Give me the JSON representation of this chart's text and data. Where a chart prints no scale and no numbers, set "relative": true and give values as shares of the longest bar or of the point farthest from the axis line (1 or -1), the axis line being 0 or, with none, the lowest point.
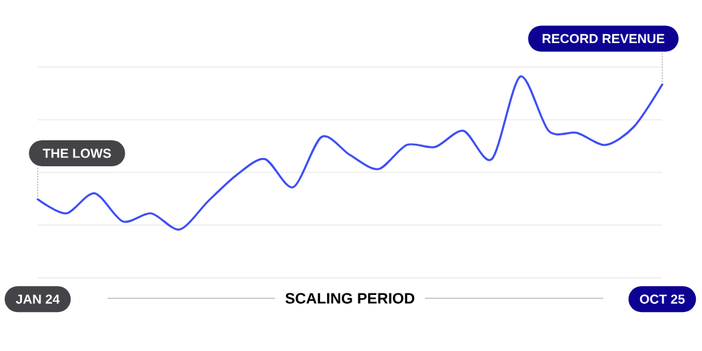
{
  "chart_data": {
    "type": "line",
    "xlabel": "SCALING PERIOD",
    "relative": true,
    "grid": "y",
    "tick_labels": "x",
    "categories": [
      "JAN 24",
      null,
      null,
      null,
      null,
      null,
      null,
      null,
      null,
      null,
      null,
      null,
      null,
      null,
      null,
      null,
      null,
      null,
      null,
      null,
      null,
      null,
      "OCT 25"
    ],
    "series": [
      {
        "color": "#3d4df5",
        "values": [
          0.39,
          0.32,
          0.42,
          0.28,
          0.32,
          0.24,
          0.38,
          0.51,
          0.59,
          0.45,
          0.7,
          0.61,
          0.54,
          0.66,
          0.65,
          0.73,
          0.59,
          1,
          0.73,
          0.72,
          0.66,
          0.75,
          0.96
        ]
      }
    ],
    "annotations": [
      {
        "text": "THE LOWS",
        "x": "JAN 24",
        "y": 0.39
      },
      {
        "text": "RECORD REVENUE",
        "x": "OCT 25",
        "y": 0.96
      }
    ]
  }
}
